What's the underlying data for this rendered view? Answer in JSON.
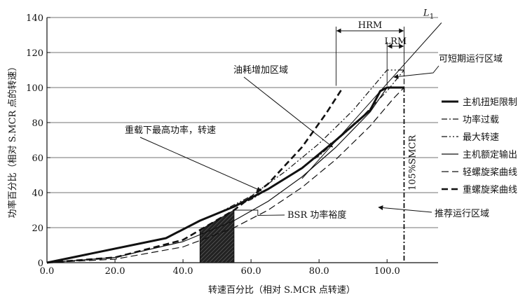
{
  "chart_data": {
    "type": "line",
    "title": "",
    "xlabel": "转速百分比（相对 S.MCR 点转速）",
    "ylabel": "功率百分比（相对 S.MCR 点的转速）",
    "xlim": [
      0,
      115
    ],
    "ylim": [
      0,
      140
    ],
    "x_ticks": [
      0,
      20,
      40,
      60,
      80,
      100
    ],
    "x_tick_labels": [
      "0.0",
      "20.0",
      "40.0",
      "60.0",
      "80.0",
      "100.0"
    ],
    "y_ticks": [
      0,
      20,
      40,
      60,
      80,
      100,
      120,
      140
    ],
    "y_tick_labels": [
      "0",
      "20",
      "40",
      "60",
      "80",
      "100",
      "120",
      "140"
    ],
    "grid": "horizontal",
    "series": [
      {
        "name": "主机扭矩限制",
        "style": "thick-solid",
        "points": [
          [
            0,
            0
          ],
          [
            35,
            14
          ],
          [
            45,
            24
          ],
          [
            55,
            32
          ],
          [
            65,
            42
          ],
          [
            75,
            54
          ],
          [
            85,
            70
          ],
          [
            95,
            87
          ],
          [
            98,
            98
          ],
          [
            100,
            100
          ],
          [
            105,
            100
          ]
        ]
      },
      {
        "name": "功率过载",
        "style": "dash-dot-thin",
        "points": [
          [
            50,
            28
          ],
          [
            60,
            36
          ],
          [
            70,
            48
          ],
          [
            80,
            61
          ],
          [
            90,
            78
          ],
          [
            100,
            98
          ],
          [
            105,
            110
          ]
        ]
      },
      {
        "name": "最大转速",
        "style": "dash-dot-dot",
        "points": [
          [
            50,
            28
          ],
          [
            60,
            38
          ],
          [
            70,
            52
          ],
          [
            80,
            68
          ],
          [
            90,
            87
          ],
          [
            100,
            110
          ],
          [
            105,
            110
          ],
          [
            105,
            100
          ]
        ]
      },
      {
        "name": "主机额定输出",
        "style": "solid",
        "points": [
          [
            0,
            0
          ],
          [
            20,
            3
          ],
          [
            40,
            12
          ],
          [
            55,
            24
          ],
          [
            65,
            35
          ],
          [
            75,
            49
          ],
          [
            85,
            66
          ],
          [
            95,
            86
          ],
          [
            100,
            100
          ]
        ]
      },
      {
        "name": "轻螺旋桨曲线",
        "style": "long-dash",
        "points": [
          [
            0,
            0
          ],
          [
            20,
            2
          ],
          [
            40,
            9
          ],
          [
            55,
            20
          ],
          [
            65,
            30
          ],
          [
            75,
            43
          ],
          [
            85,
            59
          ],
          [
            95,
            78
          ],
          [
            102,
            94
          ],
          [
            105,
            100
          ]
        ]
      },
      {
        "name": "重螺旋桨曲线",
        "style": "heavy-dash",
        "points": [
          [
            0,
            0
          ],
          [
            20,
            3
          ],
          [
            40,
            13
          ],
          [
            55,
            30
          ],
          [
            65,
            45
          ],
          [
            75,
            66
          ],
          [
            82,
            85
          ],
          [
            87,
            100
          ]
        ]
      }
    ],
    "L1_line": {
      "label": "L1",
      "points": [
        [
          75,
          48
        ],
        [
          116,
          137
        ]
      ]
    },
    "vertical_line": {
      "label": "105%SMCR",
      "x": 105
    },
    "shaded_region": {
      "x_from": 45,
      "x_to": 55
    },
    "dimensions": [
      {
        "label": "HRM",
        "x_from": 85,
        "x_to": 105
      },
      {
        "label": "LRM",
        "x_from": 100,
        "x_to": 105
      }
    ],
    "region_labels": [
      {
        "label": "油耗增加区域"
      },
      {
        "label": "可短期运行区域"
      },
      {
        "label": "重载下最高功率，转速"
      },
      {
        "label": "BSR 功率裕度"
      },
      {
        "label": "推荐运行区域"
      }
    ]
  }
}
